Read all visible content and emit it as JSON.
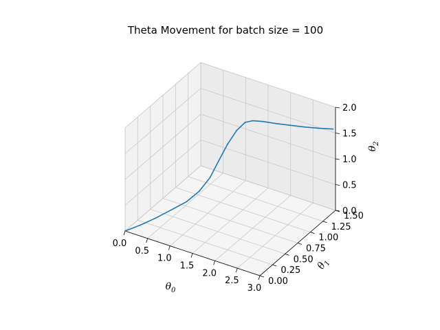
{
  "chart_data": {
    "type": "line3d",
    "title": "Theta Movement for batch size = 100",
    "axes": {
      "x": {
        "label": "θ",
        "label_sub": "0",
        "lim": [
          0,
          3
        ],
        "ticks": [
          "0.0",
          "0.5",
          "1.0",
          "1.5",
          "2.0",
          "2.5",
          "3.0"
        ],
        "tick_values": [
          0,
          0.5,
          1,
          1.5,
          2,
          2.5,
          3
        ]
      },
      "y": {
        "label": "θ",
        "label_sub": "1",
        "lim": [
          0,
          1.5
        ],
        "ticks": [
          "0.00",
          "0.25",
          "0.50",
          "0.75",
          "1.00",
          "1.25",
          "1.50"
        ],
        "tick_values": [
          0,
          0.25,
          0.5,
          0.75,
          1,
          1.25,
          1.5
        ]
      },
      "z": {
        "label": "θ",
        "label_sub": "2",
        "lim": [
          0,
          2
        ],
        "ticks": [
          "0.0",
          "0.5",
          "1.0",
          "1.5",
          "2.0"
        ],
        "tick_values": [
          0,
          0.5,
          1,
          1.5,
          2
        ]
      }
    },
    "grid": true,
    "series": [
      {
        "color": "#1f77b4",
        "points": [
          [
            0,
            0,
            0
          ],
          [
            0.25,
            0.08,
            0.12
          ],
          [
            0.5,
            0.16,
            0.26
          ],
          [
            0.75,
            0.24,
            0.42
          ],
          [
            1.0,
            0.33,
            0.58
          ],
          [
            1.2,
            0.4,
            0.78
          ],
          [
            1.35,
            0.48,
            1.02
          ],
          [
            1.45,
            0.56,
            1.3
          ],
          [
            1.55,
            0.65,
            1.58
          ],
          [
            1.65,
            0.74,
            1.8
          ],
          [
            1.75,
            0.82,
            1.92
          ],
          [
            1.85,
            0.88,
            1.93
          ],
          [
            2.0,
            0.95,
            1.9
          ],
          [
            2.2,
            1.03,
            1.85
          ],
          [
            2.4,
            1.12,
            1.8
          ],
          [
            2.6,
            1.22,
            1.74
          ],
          [
            2.8,
            1.33,
            1.68
          ],
          [
            3.0,
            1.45,
            1.62
          ]
        ]
      }
    ]
  }
}
